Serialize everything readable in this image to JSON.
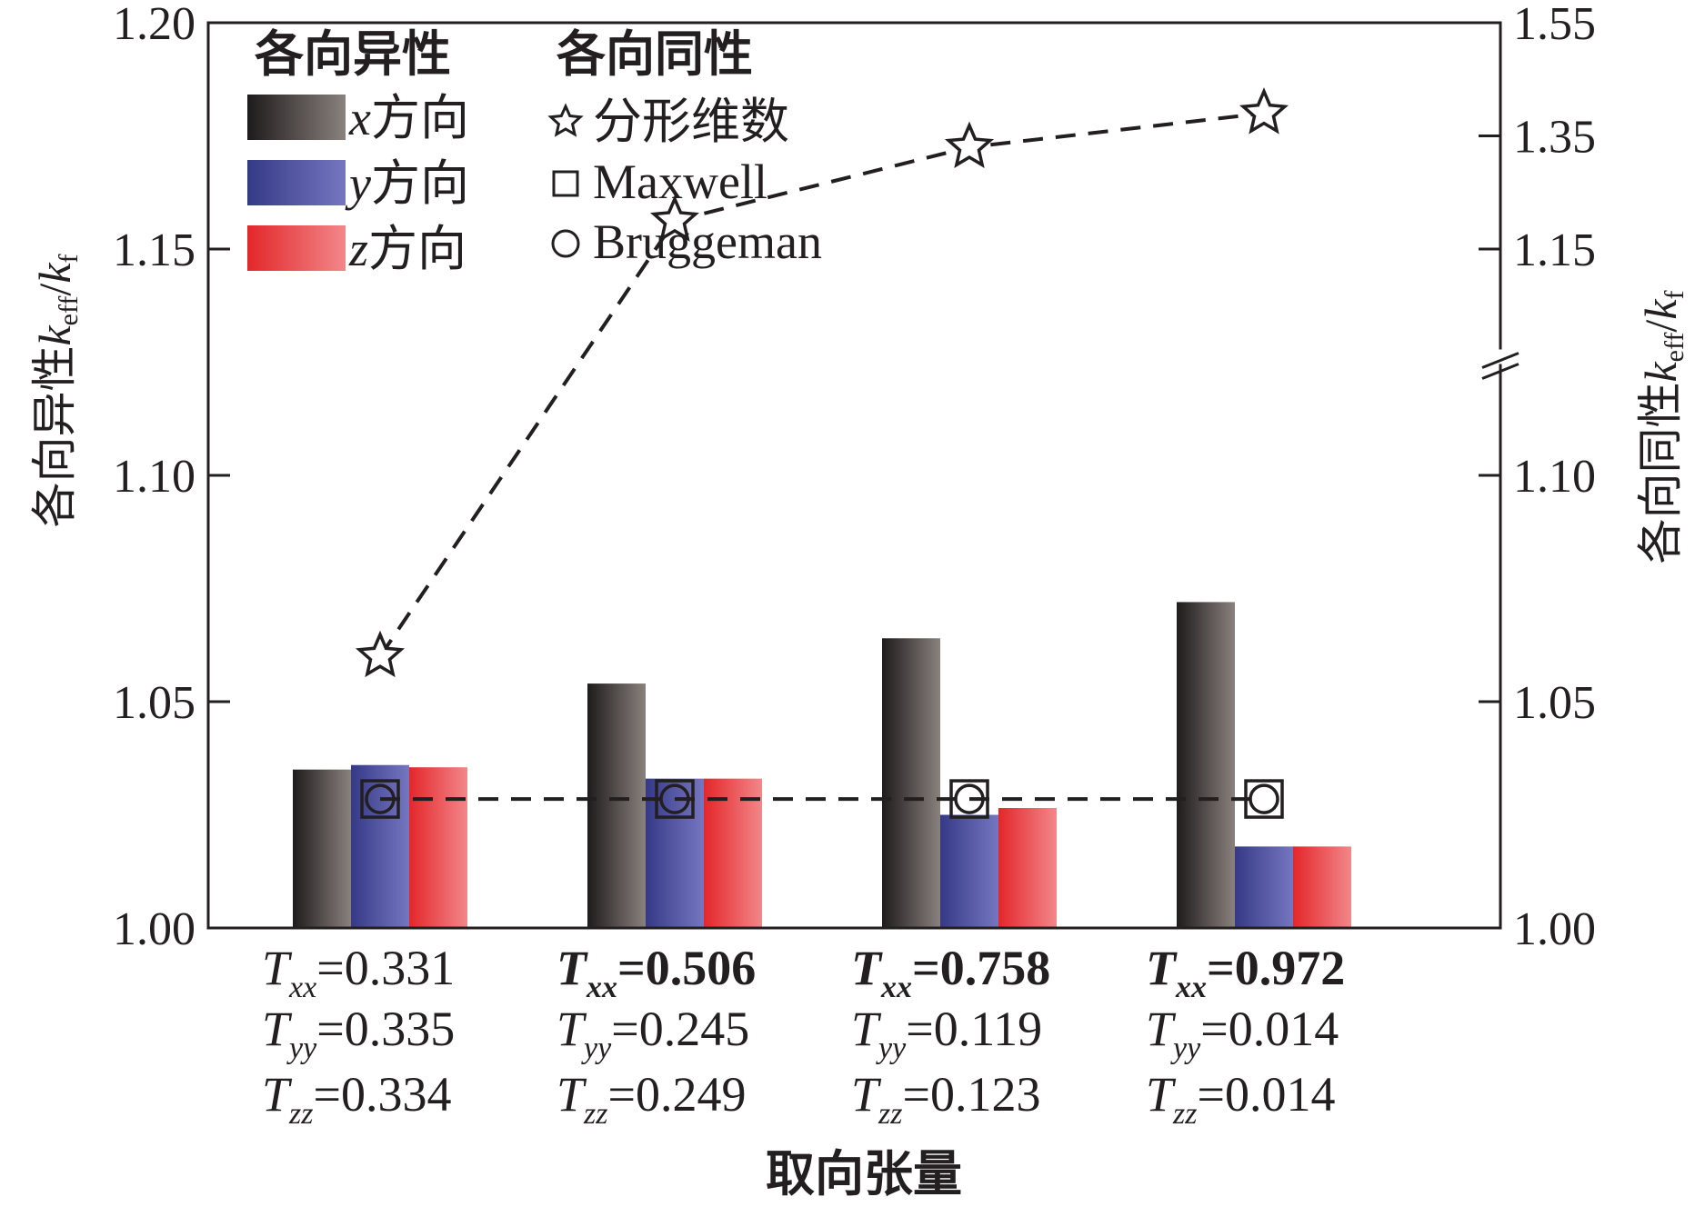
{
  "chart_data": {
    "type": "bar",
    "xlabel": "取向张量",
    "ylabel_left": {
      "main": "各向异性",
      "k": "k",
      "sub": "eff",
      "slash": "/",
      "k2": "k",
      "sub2": "f"
    },
    "ylabel_right": {
      "main": "各向同性",
      "k": "k",
      "sub": "eff",
      "slash": "/",
      "k2": "k",
      "sub2": "f"
    },
    "ylim_left": [
      1.0,
      1.2
    ],
    "yticks_left": [
      "1.00",
      "1.05",
      "1.10",
      "1.15",
      "1.20"
    ],
    "yticks_right": [
      "1.00",
      "1.05",
      "1.10",
      "1.15",
      "1.35",
      "1.55"
    ],
    "right_axis_broken": true,
    "categories": [
      {
        "bold_xx": false,
        "lines": [
          {
            "sym": "T",
            "sub": "xx",
            "val": "=0.331"
          },
          {
            "sym": "T",
            "sub": "yy",
            "val": "=0.335"
          },
          {
            "sym": "T",
            "sub": "zz",
            "val": "=0.334"
          }
        ]
      },
      {
        "bold_xx": true,
        "lines": [
          {
            "sym": "T",
            "sub": "xx",
            "val": "=0.506"
          },
          {
            "sym": "T",
            "sub": "yy",
            "val": "=0.245"
          },
          {
            "sym": "T",
            "sub": "zz",
            "val": "=0.249"
          }
        ]
      },
      {
        "bold_xx": true,
        "lines": [
          {
            "sym": "T",
            "sub": "xx",
            "val": "=0.758"
          },
          {
            "sym": "T",
            "sub": "yy",
            "val": "=0.119"
          },
          {
            "sym": "T",
            "sub": "zz",
            "val": "=0.123"
          }
        ]
      },
      {
        "bold_xx": true,
        "lines": [
          {
            "sym": "T",
            "sub": "xx",
            "val": "=0.972"
          },
          {
            "sym": "T",
            "sub": "yy",
            "val": "=0.014"
          },
          {
            "sym": "T",
            "sub": "zz",
            "val": "=0.014"
          }
        ]
      }
    ],
    "bar_series": [
      {
        "name": "x方向",
        "var": "x",
        "suffix": "方向",
        "values": [
          1.035,
          1.054,
          1.064,
          1.072
        ],
        "colors": [
          "#1e1b1c",
          "#8a817d"
        ]
      },
      {
        "name": "y方向",
        "var": "y",
        "suffix": "方向",
        "values": [
          1.036,
          1.033,
          1.025,
          1.018
        ],
        "colors": [
          "#353a86",
          "#7676c0"
        ]
      },
      {
        "name": "z方向",
        "var": "z",
        "suffix": "方向",
        "values": [
          1.0355,
          1.033,
          1.0265,
          1.018
        ],
        "colors": [
          "#e3272a",
          "#f2878a"
        ]
      }
    ],
    "isotropic_series": [
      {
        "name": "分形维数",
        "marker": "star",
        "values_right_axis": [
          1.06,
          1.2,
          1.33,
          1.39
        ],
        "line": "dashed"
      },
      {
        "name": "Maxwell",
        "marker": "square",
        "values_left_axis": [
          1.0285,
          1.0285,
          1.0285,
          1.0285
        ],
        "line": "dashed"
      },
      {
        "name": "Bruggeman",
        "marker": "circle",
        "values_left_axis": [
          1.0285,
          1.0285,
          1.0285,
          1.0285
        ],
        "line": "dashed"
      }
    ],
    "legend": {
      "anisotropic_title": "各向异性",
      "isotropic_title": "各向同性",
      "placement": "top-left"
    }
  }
}
